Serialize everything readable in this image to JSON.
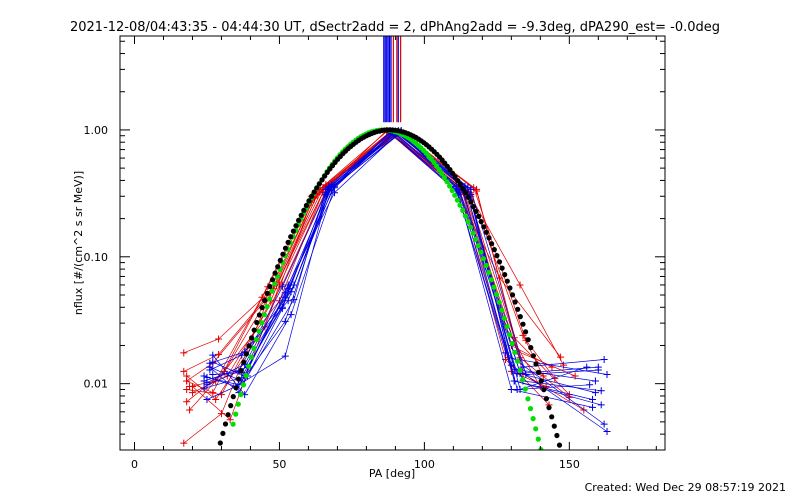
{
  "page": {
    "title": "2021-12-08/04:43:35 - 04:44:30 UT, dSectr2add = 2, dPhAng2add = -9.3deg, dPA290_est= -0.0deg",
    "footer": "Created: Wed Dec 29 08:57:19 2021"
  },
  "chart_data": {
    "type": "line",
    "xlabel": "PA [deg]",
    "ylabel": "nflux [#/(cm^2 s sr MeV)]",
    "xlim": [
      -5,
      183
    ],
    "ylim": [
      0.003,
      5.5
    ],
    "yscale": "log",
    "x_ticks": [
      {
        "v": 0,
        "label": "0"
      },
      {
        "v": 50,
        "label": "50"
      },
      {
        "v": 100,
        "label": "100"
      },
      {
        "v": 150,
        "label": "150"
      }
    ],
    "y_ticks": [
      {
        "v": 0.01,
        "label": "0.01"
      },
      {
        "v": 0.1,
        "label": "0.10"
      },
      {
        "v": 1,
        "label": "1.00"
      }
    ],
    "colors": {
      "red": "#e00000",
      "blue": "#0000e0",
      "green": "#00e000",
      "black": "#000000"
    },
    "series": [
      {
        "color": "red",
        "points": [
          [
            18,
            0.0105
          ],
          [
            27,
            0.0085
          ],
          [
            46,
            0.058
          ],
          [
            62,
            0.3
          ],
          [
            88,
            0.96
          ],
          [
            113,
            0.33
          ],
          [
            130,
            0.0125
          ],
          [
            142,
            0.0095
          ]
        ]
      },
      {
        "color": "red",
        "points": [
          [
            17,
            0.0175
          ],
          [
            29,
            0.0225
          ],
          [
            49,
            0.06
          ],
          [
            65,
            0.35
          ],
          [
            90,
            0.93
          ],
          [
            116,
            0.3
          ],
          [
            133,
            0.06
          ],
          [
            148,
            0.014
          ]
        ]
      },
      {
        "color": "red",
        "points": [
          [
            18,
            0.0072
          ],
          [
            31,
            0.0125
          ],
          [
            50,
            0.045
          ],
          [
            66,
            0.37
          ],
          [
            92,
            0.95
          ],
          [
            118,
            0.34
          ],
          [
            134,
            0.012
          ],
          [
            155,
            0.0062
          ]
        ]
      },
      {
        "color": "red",
        "points": [
          [
            19,
            0.0095
          ],
          [
            28,
            0.0105
          ],
          [
            44,
            0.048
          ],
          [
            61,
            0.3
          ],
          [
            87,
            0.97
          ],
          [
            112,
            0.35
          ],
          [
            128,
            0.0155
          ],
          [
            143,
            0.0068
          ]
        ]
      },
      {
        "color": "red",
        "points": [
          [
            17,
            0.0034
          ],
          [
            30,
            0.0058
          ],
          [
            47,
            0.052
          ],
          [
            63,
            0.33
          ],
          [
            89,
            0.94
          ],
          [
            115,
            0.32
          ],
          [
            131,
            0.023
          ],
          [
            150,
            0.0082
          ]
        ]
      },
      {
        "color": "red",
        "points": [
          [
            20,
            0.0085
          ],
          [
            32,
            0.0115
          ],
          [
            51,
            0.06
          ],
          [
            67,
            0.37
          ],
          [
            91,
            0.96
          ],
          [
            117,
            0.35
          ],
          [
            135,
            0.022
          ],
          [
            145,
            0.011
          ]
        ]
      },
      {
        "color": "red",
        "points": [
          [
            18,
            0.0115
          ],
          [
            28,
            0.0075
          ],
          [
            45,
            0.028
          ],
          [
            61,
            0.27
          ],
          [
            87,
            0.99
          ],
          [
            111,
            0.33
          ],
          [
            126,
            0.068
          ],
          [
            147,
            0.0162
          ]
        ]
      },
      {
        "color": "red",
        "points": [
          [
            19,
            0.0062
          ],
          [
            31,
            0.0125
          ],
          [
            48,
            0.056
          ],
          [
            64,
            0.34
          ],
          [
            88,
            0.96
          ],
          [
            114,
            0.31
          ],
          [
            132,
            0.018
          ],
          [
            152,
            0.0115
          ]
        ]
      },
      {
        "color": "red",
        "points": [
          [
            17,
            0.0125
          ],
          [
            29,
            0.017
          ],
          [
            49,
            0.06
          ],
          [
            65,
            0.32
          ],
          [
            90,
            0.97
          ],
          [
            116,
            0.32
          ],
          [
            134,
            0.024
          ],
          [
            141,
            0.0115
          ]
        ]
      },
      {
        "color": "red",
        "points": [
          [
            18,
            0.0105
          ],
          [
            27,
            0.0145
          ],
          [
            45,
            0.045
          ],
          [
            62,
            0.29
          ],
          [
            88,
            0.95
          ],
          [
            113,
            0.35
          ],
          [
            128,
            0.028
          ],
          [
            140,
            0.0095
          ]
        ]
      },
      {
        "color": "red",
        "points": [
          [
            20,
            0.0095
          ],
          [
            33,
            0.0052
          ],
          [
            50,
            0.06
          ],
          [
            66,
            0.36
          ],
          [
            92,
            0.98
          ],
          [
            118,
            0.33
          ],
          [
            133,
            0.016
          ],
          [
            150,
            0.0078
          ]
        ]
      },
      {
        "color": "red",
        "points": [
          [
            18,
            0.009
          ],
          [
            30,
            0.0082
          ],
          [
            47,
            0.045
          ],
          [
            63,
            0.31
          ],
          [
            89,
            0.96
          ],
          [
            115,
            0.33
          ],
          [
            130,
            0.02
          ],
          [
            144,
            0.0135
          ]
        ]
      },
      {
        "color": "blue",
        "points": [
          [
            24,
            0.0115
          ],
          [
            35,
            0.0095
          ],
          [
            52,
            0.0165
          ],
          [
            67,
            0.34
          ],
          [
            91,
            0.96
          ],
          [
            111,
            0.36
          ],
          [
            130,
            0.009
          ],
          [
            158,
            0.0065
          ]
        ]
      },
      {
        "color": "blue",
        "points": [
          [
            26,
            0.0145
          ],
          [
            38,
            0.0178
          ],
          [
            53,
            0.045
          ],
          [
            68,
            0.36
          ],
          [
            89,
            0.98
          ],
          [
            113,
            0.34
          ],
          [
            132,
            0.012
          ],
          [
            160,
            0.0135
          ]
        ]
      },
      {
        "color": "blue",
        "points": [
          [
            25,
            0.0098
          ],
          [
            36,
            0.0125
          ],
          [
            51,
            0.058
          ],
          [
            66,
            0.32
          ],
          [
            92,
            0.95
          ],
          [
            112,
            0.33
          ],
          [
            134,
            0.0105
          ],
          [
            161,
            0.0088
          ]
        ]
      },
      {
        "color": "blue",
        "points": [
          [
            27,
            0.0168
          ],
          [
            38,
            0.0082
          ],
          [
            54,
            0.035
          ],
          [
            69,
            0.35
          ],
          [
            90,
            0.97
          ],
          [
            114,
            0.36
          ],
          [
            131,
            0.013
          ],
          [
            159,
            0.0105
          ]
        ]
      },
      {
        "color": "blue",
        "points": [
          [
            26,
            0.0135
          ],
          [
            37,
            0.0105
          ],
          [
            52,
            0.052
          ],
          [
            67,
            0.33
          ],
          [
            88,
            0.96
          ],
          [
            111,
            0.34
          ],
          [
            128,
            0.0175
          ],
          [
            162,
            0.0048
          ]
        ]
      },
      {
        "color": "blue",
        "points": [
          [
            24,
            0.0105
          ],
          [
            39,
            0.0135
          ],
          [
            55,
            0.06
          ],
          [
            68,
            0.37
          ],
          [
            91,
            0.99
          ],
          [
            115,
            0.35
          ],
          [
            133,
            0.009
          ],
          [
            156,
            0.0135
          ]
        ]
      },
      {
        "color": "blue",
        "points": [
          [
            25,
            0.0075
          ],
          [
            35,
            0.0095
          ],
          [
            51,
            0.04
          ],
          [
            66,
            0.31
          ],
          [
            89,
            0.95
          ],
          [
            112,
            0.32
          ],
          [
            130,
            0.014
          ],
          [
            163,
            0.0042
          ]
        ]
      },
      {
        "color": "blue",
        "points": [
          [
            27,
            0.0148
          ],
          [
            38,
            0.0115
          ],
          [
            53,
            0.056
          ],
          [
            69,
            0.36
          ],
          [
            92,
            0.97
          ],
          [
            116,
            0.34
          ],
          [
            135,
            0.0118
          ],
          [
            160,
            0.0128
          ]
        ]
      },
      {
        "color": "blue",
        "points": [
          [
            25,
            0.0112
          ],
          [
            36,
            0.0098
          ],
          [
            52,
            0.031
          ],
          [
            67,
            0.35
          ],
          [
            90,
            0.98
          ],
          [
            113,
            0.36
          ],
          [
            131,
            0.0105
          ],
          [
            158,
            0.0075
          ]
        ]
      },
      {
        "color": "blue",
        "points": [
          [
            26,
            0.0128
          ],
          [
            37,
            0.0168
          ],
          [
            54,
            0.053
          ],
          [
            68,
            0.33
          ],
          [
            88,
            0.96
          ],
          [
            111,
            0.33
          ],
          [
            129,
            0.016
          ],
          [
            163,
            0.0118
          ]
        ]
      },
      {
        "color": "blue",
        "points": [
          [
            24,
            0.0092
          ],
          [
            39,
            0.0115
          ],
          [
            55,
            0.046
          ],
          [
            66,
            0.34
          ],
          [
            91,
            0.95
          ],
          [
            115,
            0.35
          ],
          [
            132,
            0.009
          ],
          [
            157,
            0.0098
          ]
        ]
      },
      {
        "color": "blue",
        "points": [
          [
            26,
            0.0135
          ],
          [
            36,
            0.0085
          ],
          [
            51,
            0.039
          ],
          [
            67,
            0.36
          ],
          [
            89,
            0.97
          ],
          [
            112,
            0.34
          ],
          [
            134,
            0.0135
          ],
          [
            162,
            0.0155
          ]
        ]
      },
      {
        "color": "blue",
        "points": [
          [
            25,
            0.0102
          ],
          [
            38,
            0.0142
          ],
          [
            53,
            0.06
          ],
          [
            69,
            0.32
          ],
          [
            92,
            0.99
          ],
          [
            116,
            0.31
          ],
          [
            131,
            0.0105
          ],
          [
            161,
            0.0068
          ]
        ]
      },
      {
        "color": "blue",
        "points": [
          [
            27,
            0.0118
          ],
          [
            37,
            0.0122
          ],
          [
            52,
            0.048
          ],
          [
            68,
            0.35
          ],
          [
            90,
            0.96
          ],
          [
            114,
            0.35
          ],
          [
            133,
            0.012
          ],
          [
            159,
            0.0085
          ]
        ]
      }
    ],
    "fits": [
      {
        "color": "green",
        "center": 86,
        "width": 22.5,
        "xrange": [
          34,
          150
        ]
      },
      {
        "color": "black",
        "center": 88,
        "width": 24.5,
        "xrange": [
          26,
          148
        ]
      }
    ],
    "vlines": [
      {
        "color": "blue",
        "x": 86.0,
        "from": 1.15
      },
      {
        "color": "blue",
        "x": 86.5,
        "from": 1.15
      },
      {
        "color": "blue",
        "x": 87.0,
        "from": 1.15
      },
      {
        "color": "blue",
        "x": 87.5,
        "from": 1.15
      },
      {
        "color": "blue",
        "x": 88.0,
        "from": 1.15
      },
      {
        "color": "blue",
        "x": 88.5,
        "from": 1.15
      },
      {
        "color": "red",
        "x": 89.3,
        "from": 1.15
      },
      {
        "color": "red",
        "x": 90.5,
        "from": 1.15
      },
      {
        "color": "blue",
        "x": 91.0,
        "from": 1.15
      },
      {
        "color": "red",
        "x": 91.8,
        "from": 1.15
      }
    ]
  }
}
